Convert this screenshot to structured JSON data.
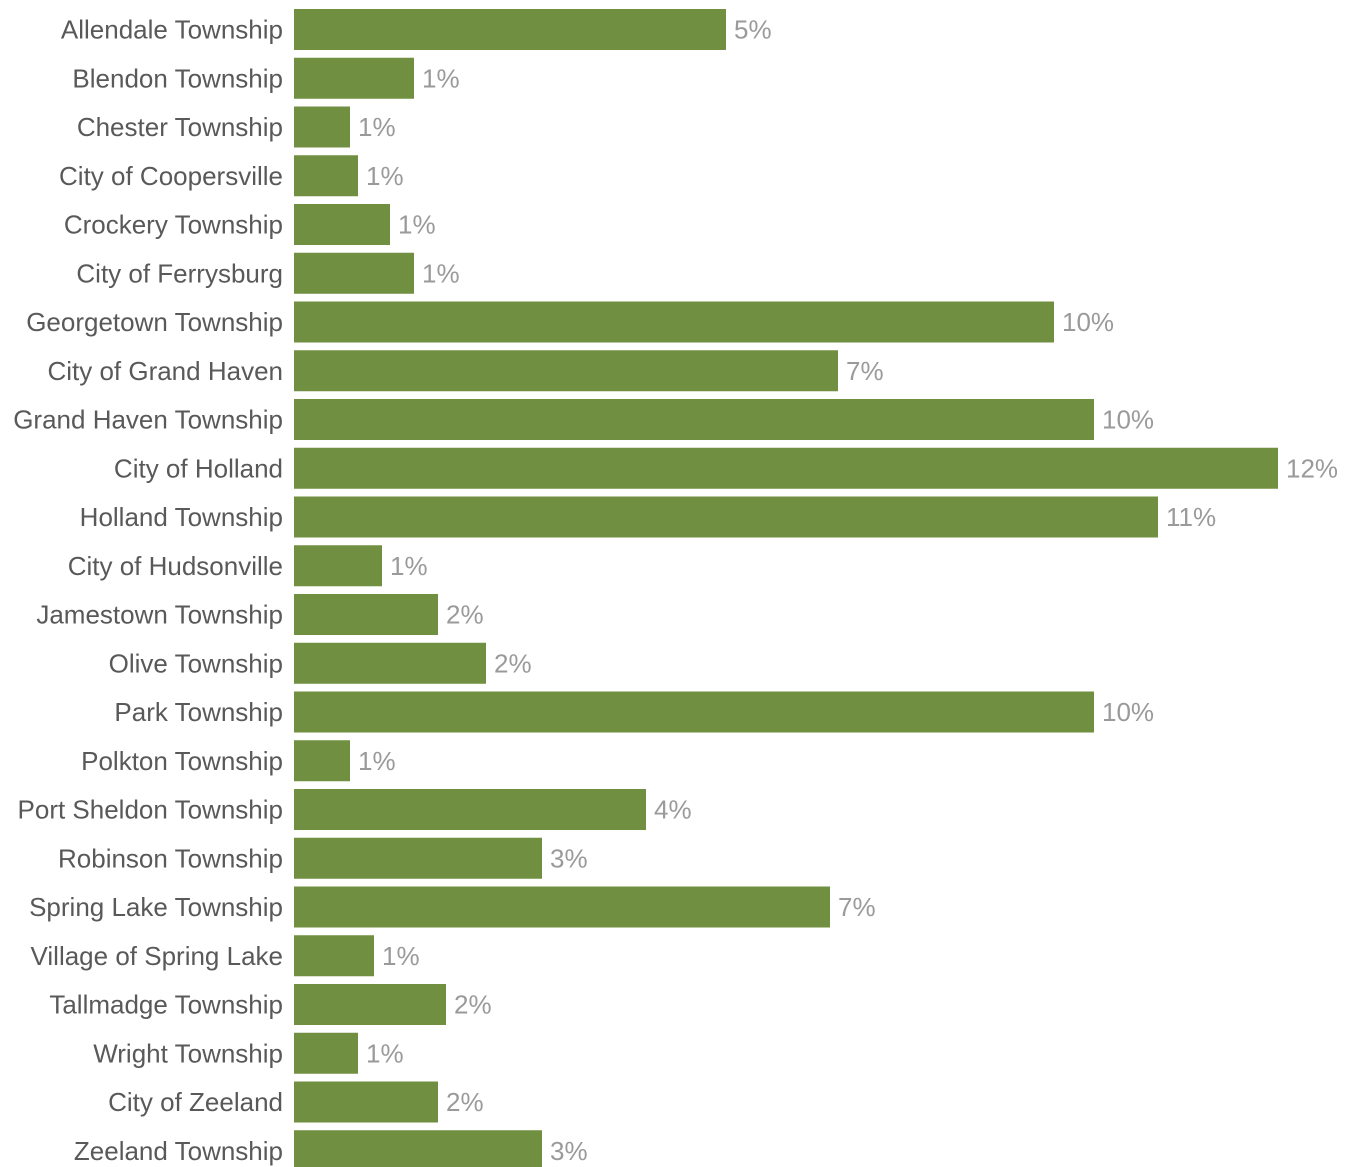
{
  "chart_data": {
    "type": "bar",
    "orientation": "horizontal",
    "bar_color": "#708f40",
    "categories": [
      "Allendale Township",
      "Blendon Township",
      "Chester Township",
      "City of Coopersville",
      "Crockery Township",
      "City of Ferrysburg",
      "Georgetown Township",
      "City of Grand Haven",
      "Grand Haven Township",
      "City of Holland",
      "Holland Township",
      "City of Hudsonville",
      "Jamestown Township",
      "Olive Township",
      "Park Township",
      "Polkton Township",
      "Port Sheldon Township",
      "Robinson Township",
      "Spring Lake Township",
      "Village of Spring Lake",
      "Tallmadge Township",
      "Wright Township",
      "City of Zeeland",
      "Zeeland Township"
    ],
    "values": [
      5.4,
      1.5,
      0.7,
      0.8,
      1.2,
      1.5,
      9.5,
      6.8,
      10.0,
      12.3,
      10.8,
      1.1,
      1.8,
      2.4,
      10.0,
      0.7,
      4.4,
      3.1,
      6.7,
      1.0,
      1.9,
      0.8,
      1.8,
      3.1
    ],
    "data_labels": [
      "5%",
      "1%",
      "1%",
      "1%",
      "1%",
      "1%",
      "10%",
      "7%",
      "10%",
      "12%",
      "11%",
      "1%",
      "2%",
      "2%",
      "10%",
      "1%",
      "4%",
      "3%",
      "7%",
      "1%",
      "2%",
      "1%",
      "2%",
      "3%"
    ],
    "xlim": [
      0,
      12.3
    ],
    "grid": false,
    "legend": "none"
  }
}
